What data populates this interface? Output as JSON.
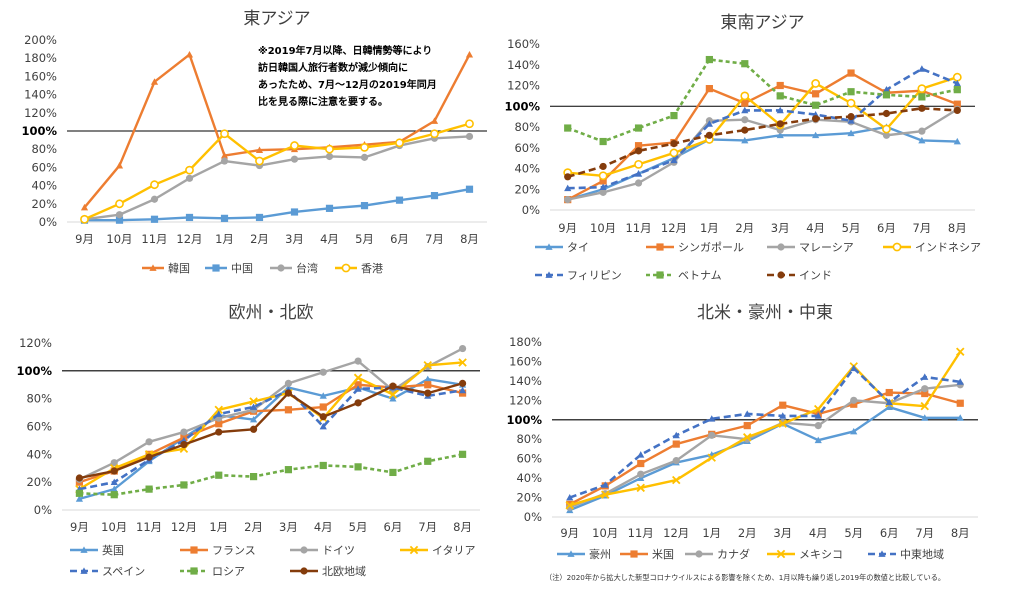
{
  "months": [
    "9月",
    "10月",
    "11月",
    "12月",
    "1月",
    "2月",
    "3月",
    "4月",
    "5月",
    "6月",
    "7月",
    "8月"
  ],
  "footnote": "（注）2020年から拡大した新型コロナウイルスによる影響を除くため、1月以降も繰り返し2019年の数値と比較している。",
  "chart_data": [
    {
      "type": "line",
      "title": "東アジア",
      "ylim": [
        0,
        200
      ],
      "yticks": [
        "0%",
        "20%",
        "40%",
        "60%",
        "80%",
        "100%",
        "120%",
        "140%",
        "160%",
        "180%",
        "200%"
      ],
      "reference_label": "100%",
      "annotation": [
        "※2019年7月以降、日韓情勢等により",
        "訪日韓国人旅行者数が減少傾向に",
        "あったため、7月～12月の2019年同月",
        "比を見る際に注意を要する。"
      ],
      "series": [
        {
          "name": "韓国",
          "color": "#ED7D31",
          "marker": "triangle",
          "dash": false,
          "values": [
            16,
            62,
            154,
            184,
            73,
            79,
            80,
            82,
            85,
            88,
            111,
            184
          ]
        },
        {
          "name": "中国",
          "color": "#5B9BD5",
          "marker": "square",
          "dash": false,
          "values": [
            2,
            2,
            3,
            5,
            4,
            5,
            11,
            15,
            18,
            24,
            29,
            36
          ]
        },
        {
          "name": "台湾",
          "color": "#A5A5A5",
          "marker": "circle",
          "dash": false,
          "values": [
            3,
            8,
            25,
            48,
            67,
            62,
            69,
            72,
            71,
            84,
            92,
            94
          ]
        },
        {
          "name": "香港",
          "color": "#FFC000",
          "marker": "circle-open",
          "dash": false,
          "values": [
            3,
            20,
            41,
            57,
            97,
            67,
            84,
            80,
            82,
            87,
            97,
            108
          ]
        }
      ]
    },
    {
      "type": "line",
      "title": "東南アジア",
      "ylim": [
        0,
        160
      ],
      "yticks": [
        "0%",
        "20%",
        "40%",
        "60%",
        "80%",
        "100%",
        "120%",
        "140%",
        "160%"
      ],
      "reference_label": "100%",
      "series": [
        {
          "name": "タイ",
          "color": "#5B9BD5",
          "marker": "triangle",
          "dash": false,
          "values": [
            10,
            20,
            35,
            50,
            68,
            67,
            72,
            72,
            74,
            80,
            67,
            66
          ]
        },
        {
          "name": "シンガポール",
          "color": "#ED7D31",
          "marker": "square",
          "dash": false,
          "values": [
            10,
            28,
            62,
            65,
            117,
            103,
            120,
            112,
            132,
            113,
            115,
            102
          ]
        },
        {
          "name": "マレーシア",
          "color": "#A5A5A5",
          "marker": "circle",
          "dash": false,
          "values": [
            10,
            17,
            26,
            46,
            86,
            87,
            77,
            87,
            85,
            72,
            76,
            97
          ]
        },
        {
          "name": "インドネシア",
          "color": "#FFC000",
          "marker": "circle-open",
          "dash": false,
          "values": [
            36,
            33,
            44,
            55,
            68,
            110,
            82,
            122,
            103,
            78,
            117,
            128
          ]
        },
        {
          "name": "フィリピン",
          "color": "#4472C4",
          "marker": "triangle",
          "dash": true,
          "values": [
            21,
            22,
            35,
            48,
            83,
            96,
            96,
            92,
            86,
            116,
            136,
            122
          ]
        },
        {
          "name": "ベトナム",
          "color": "#70AD47",
          "marker": "square",
          "dash": true,
          "values": [
            79,
            66,
            79,
            91,
            145,
            141,
            110,
            101,
            114,
            111,
            109,
            116
          ]
        },
        {
          "name": "インド",
          "color": "#843C0C",
          "marker": "circle",
          "dash": true,
          "values": [
            32,
            42,
            57,
            64,
            72,
            77,
            83,
            88,
            90,
            93,
            98,
            96
          ]
        }
      ]
    },
    {
      "type": "line",
      "title": "欧州・北欧",
      "ylim": [
        0,
        120
      ],
      "yticks": [
        "0%",
        "20%",
        "40%",
        "60%",
        "80%",
        "100%",
        "120%"
      ],
      "reference_label": "100%",
      "series": [
        {
          "name": "英国",
          "color": "#5B9BD5",
          "marker": "triangle",
          "dash": false,
          "values": [
            8,
            15,
            35,
            52,
            68,
            65,
            88,
            82,
            88,
            80,
            94,
            90
          ]
        },
        {
          "name": "フランス",
          "color": "#ED7D31",
          "marker": "square",
          "dash": false,
          "values": [
            20,
            28,
            40,
            52,
            62,
            71,
            72,
            74,
            90,
            88,
            90,
            84
          ]
        },
        {
          "name": "ドイツ",
          "color": "#A5A5A5",
          "marker": "circle",
          "dash": false,
          "values": [
            22,
            34,
            49,
            56,
            66,
            72,
            91,
            99,
            107,
            86,
            103,
            116
          ]
        },
        {
          "name": "イタリア",
          "color": "#FFC000",
          "marker": "x",
          "dash": false,
          "values": [
            15,
            30,
            40,
            44,
            72,
            78,
            84,
            66,
            95,
            83,
            104,
            106
          ]
        },
        {
          "name": "スペイン",
          "color": "#4472C4",
          "marker": "triangle",
          "dash": true,
          "values": [
            15,
            20,
            36,
            50,
            69,
            74,
            86,
            60,
            87,
            88,
            82,
            86
          ]
        },
        {
          "name": "ロシア",
          "color": "#70AD47",
          "marker": "square",
          "dash": true,
          "values": [
            12,
            11,
            15,
            18,
            25,
            24,
            29,
            32,
            31,
            27,
            35,
            40
          ]
        },
        {
          "name": "北欧地域",
          "color": "#843C0C",
          "marker": "circle",
          "dash": false,
          "values": [
            23,
            28,
            38,
            47,
            56,
            58,
            84,
            67,
            77,
            89,
            84,
            91
          ]
        }
      ]
    },
    {
      "type": "line",
      "title": "北米・豪州・中東",
      "ylim": [
        0,
        180
      ],
      "yticks": [
        "0%",
        "20%",
        "40%",
        "60%",
        "80%",
        "100%",
        "120%",
        "140%",
        "160%",
        "180%"
      ],
      "reference_label": "100%",
      "series": [
        {
          "name": "豪州",
          "color": "#5B9BD5",
          "marker": "triangle",
          "dash": false,
          "values": [
            7,
            22,
            40,
            56,
            64,
            78,
            96,
            79,
            88,
            113,
            102,
            102
          ]
        },
        {
          "name": "米国",
          "color": "#ED7D31",
          "marker": "square",
          "dash": false,
          "values": [
            13,
            32,
            55,
            75,
            85,
            94,
            115,
            106,
            116,
            128,
            127,
            117
          ]
        },
        {
          "name": "カナダ",
          "color": "#A5A5A5",
          "marker": "circle",
          "dash": false,
          "values": [
            10,
            24,
            44,
            58,
            84,
            80,
            97,
            94,
            120,
            117,
            132,
            136
          ]
        },
        {
          "name": "メキシコ",
          "color": "#FFC000",
          "marker": "x",
          "dash": false,
          "values": [
            12,
            23,
            30,
            38,
            61,
            82,
            96,
            111,
            155,
            117,
            114,
            170
          ]
        },
        {
          "name": "中東地域",
          "color": "#4472C4",
          "marker": "triangle",
          "dash": true,
          "values": [
            20,
            33,
            64,
            84,
            101,
            106,
            104,
            104,
            153,
            118,
            144,
            139
          ]
        }
      ]
    }
  ]
}
